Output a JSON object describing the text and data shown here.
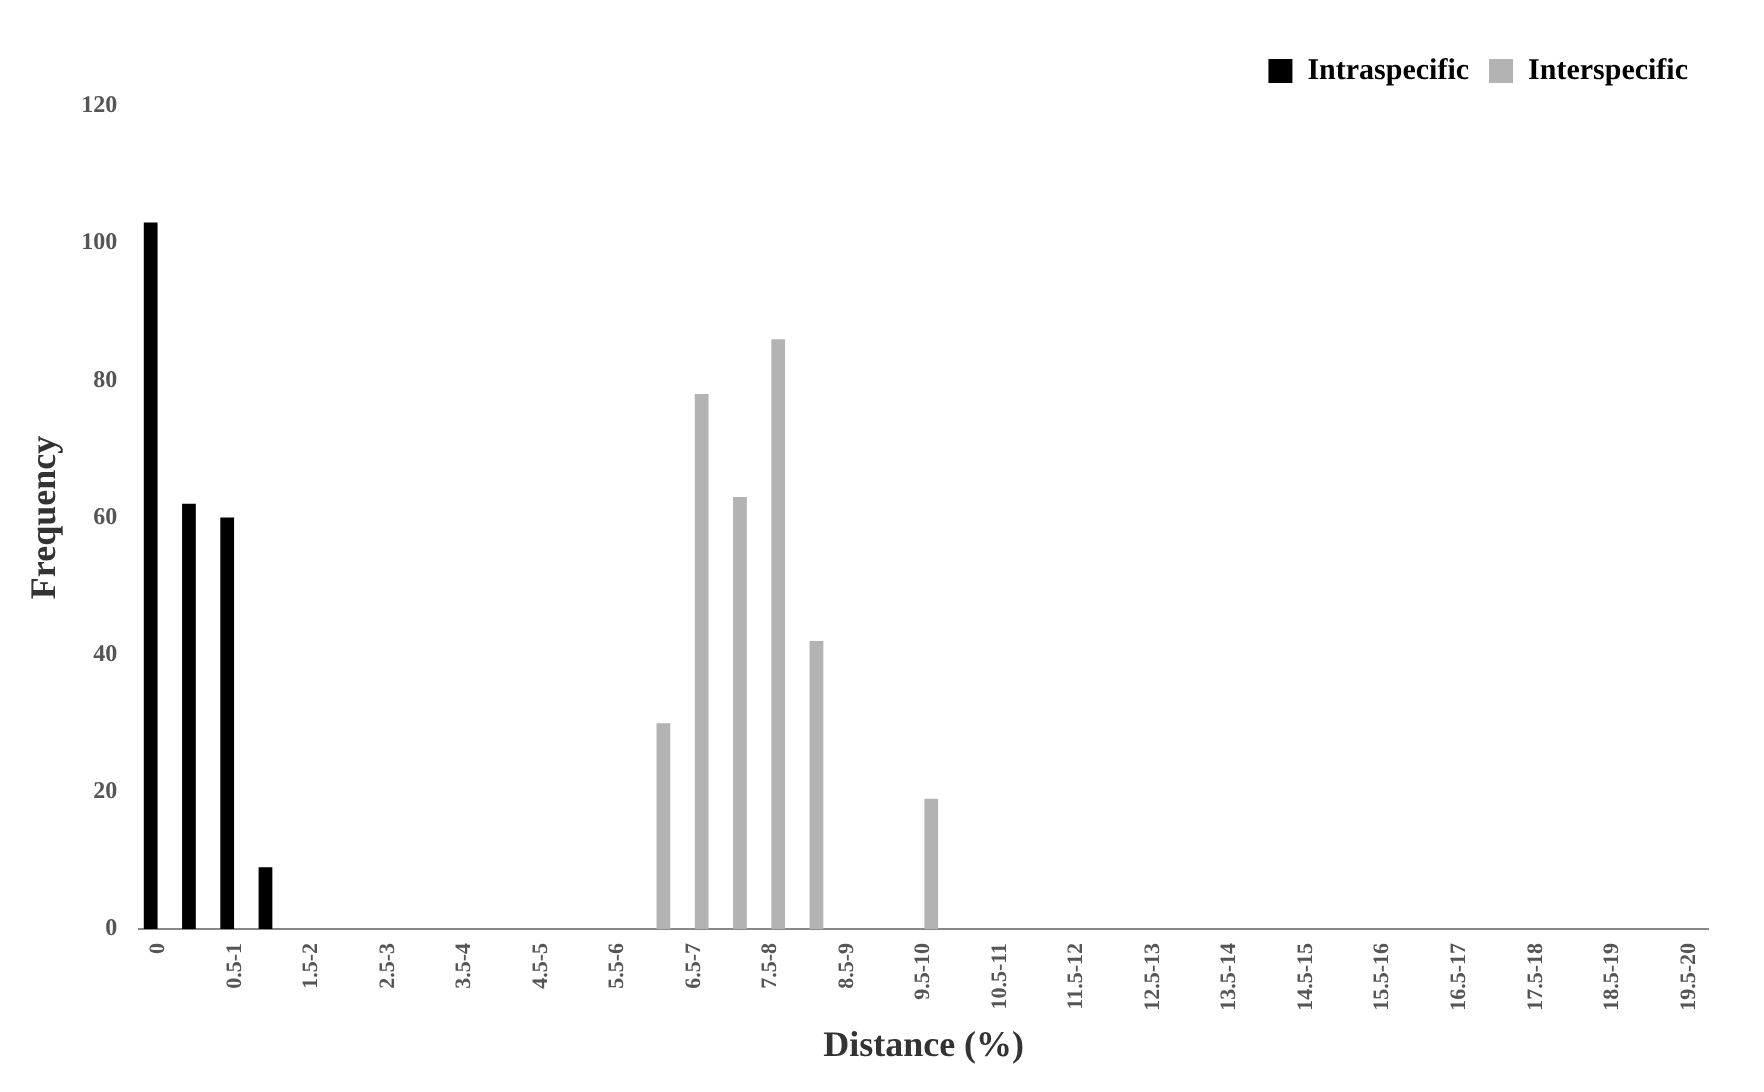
{
  "chart_data": {
    "type": "bar",
    "xlabel": "Distance (%)",
    "ylabel": "Frequency",
    "categories": [
      "0",
      null,
      "0.5-1",
      null,
      "1.5-2",
      null,
      "2.5-3",
      null,
      "3.5-4",
      null,
      "4.5-5",
      null,
      "5.5-6",
      null,
      "6.5-7",
      null,
      "7.5-8",
      null,
      "8.5-9",
      null,
      "9.5-10",
      null,
      "10.5-11",
      null,
      "11.5-12",
      null,
      "12.5-13",
      null,
      "13.5-14",
      null,
      "14.5-15",
      null,
      "15.5-16",
      null,
      "16.5-17",
      null,
      "17.5-18",
      null,
      "18.5-19",
      null,
      "19.5-20"
    ],
    "series": [
      {
        "name": "Intraspecific",
        "color": "#000000",
        "values": [
          103,
          62,
          60,
          9,
          0,
          0,
          0,
          0,
          0,
          0,
          0,
          0,
          0,
          0,
          0,
          0,
          0,
          0,
          0,
          0,
          0,
          0,
          0,
          0,
          0,
          0,
          0,
          0,
          0,
          0,
          0,
          0,
          0,
          0,
          0,
          0,
          0,
          0,
          0,
          0,
          0
        ]
      },
      {
        "name": "Interspecific",
        "color": "#b3b3b3",
        "values": [
          0,
          0,
          0,
          0,
          0,
          0,
          0,
          0,
          0,
          0,
          0,
          0,
          0,
          30,
          78,
          63,
          86,
          42,
          0,
          0,
          19,
          0,
          0,
          0,
          0,
          0,
          0,
          0,
          0,
          0,
          0,
          0,
          0,
          0,
          0,
          0,
          0,
          0,
          0,
          0,
          0
        ]
      }
    ],
    "ylim": [
      0,
      120
    ],
    "yticks": [
      0,
      20,
      40,
      60,
      80,
      100,
      120
    ],
    "grid": false,
    "legend": "top right"
  }
}
